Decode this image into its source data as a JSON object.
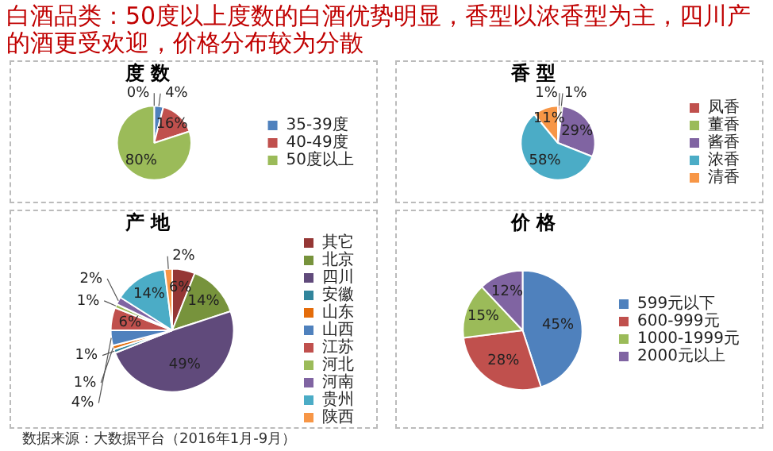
{
  "chart_data": [
    {
      "type": "other",
      "title": "白酒品类：50度以上度数的白酒优势明显，香型以浓香型为主，四川产的酒更受欢迎，价格分布较为分散",
      "annotations": [
        "数据来源：大数据平台（2016年1月-9月）"
      ]
    },
    {
      "type": "pie",
      "title": "度 数",
      "categories": [
        null,
        "35-39度",
        "40-49度",
        "50度以上"
      ],
      "values": [
        0,
        4,
        16,
        80
      ],
      "value_labels": [
        "0%",
        "4%",
        "16%",
        "80%"
      ],
      "colors": [
        "#2c4d75",
        "#4f81bd",
        "#c0504d",
        "#9bbb59"
      ],
      "legend": "right"
    },
    {
      "type": "pie",
      "title": "香 型",
      "categories": [
        "凤香",
        "董香",
        "酱香",
        "浓香",
        "清香"
      ],
      "values": [
        1,
        1,
        29,
        58,
        11
      ],
      "value_labels": [
        "1%",
        "1%",
        "29%",
        "58%",
        "11%"
      ],
      "colors": [
        "#c0504d",
        "#9bbb59",
        "#8064a2",
        "#4bacc6",
        "#f79646"
      ],
      "legend": "right"
    },
    {
      "type": "pie",
      "title": "产 地",
      "categories": [
        "其它",
        "北京",
        "四川",
        "安徽",
        "山东",
        "山西",
        "江苏",
        "河北",
        "河南",
        "贵州",
        "陕西"
      ],
      "values": [
        6,
        14,
        49,
        1,
        1,
        4,
        6,
        1,
        2,
        14,
        2
      ],
      "value_labels": [
        "6%",
        "14%",
        "49%",
        "1%",
        "1%",
        "4%",
        "6%",
        "1%",
        "2%",
        "14%",
        "2%"
      ],
      "colors": [
        "#953735",
        "#77933c",
        "#604a7b",
        "#31859c",
        "#e46c0a",
        "#4f81bd",
        "#c0504d",
        "#9bbb59",
        "#8064a2",
        "#4bacc6",
        "#f79646"
      ],
      "legend": "right"
    },
    {
      "type": "pie",
      "title": "价 格",
      "categories": [
        "599元以下",
        "600-999元",
        "1000-1999元",
        "2000元以上"
      ],
      "values": [
        45,
        28,
        15,
        12
      ],
      "value_labels": [
        "45%",
        "28%",
        "15%",
        "12%"
      ],
      "colors": [
        "#4f81bd",
        "#c0504d",
        "#9bbb59",
        "#8064a2"
      ],
      "legend": "right"
    }
  ]
}
